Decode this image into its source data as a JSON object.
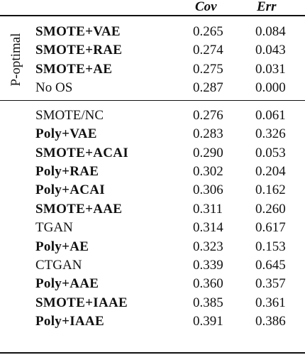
{
  "table": {
    "header": [
      "Cov",
      "Err"
    ],
    "groups": [
      {
        "label": "P-optimal",
        "rows": [
          {
            "method": "SMOTE+VAE",
            "bold": true,
            "cov": "0.265",
            "err": "0.084"
          },
          {
            "method": "SMOTE+RAE",
            "bold": true,
            "cov": "0.274",
            "err": "0.043"
          },
          {
            "method": "SMOTE+AE",
            "bold": true,
            "cov": "0.275",
            "err": "0.031"
          },
          {
            "method": "No OS",
            "bold": false,
            "cov": "0.287",
            "err": "0.000"
          }
        ]
      },
      {
        "rows": [
          {
            "method": "SMOTE/NC",
            "bold": false,
            "cov": "0.276",
            "err": "0.061"
          },
          {
            "method": "Poly+VAE",
            "bold": true,
            "cov": "0.283",
            "err": "0.326"
          },
          {
            "method": "SMOTE+ACAI",
            "bold": true,
            "cov": "0.290",
            "err": "0.053"
          },
          {
            "method": "Poly+RAE",
            "bold": true,
            "cov": "0.302",
            "err": "0.204"
          },
          {
            "method": "Poly+ACAI",
            "bold": true,
            "cov": "0.306",
            "err": "0.162"
          },
          {
            "method": "SMOTE+AAE",
            "bold": true,
            "cov": "0.311",
            "err": "0.260"
          },
          {
            "method": "TGAN",
            "bold": false,
            "cov": "0.314",
            "err": "0.617"
          },
          {
            "method": "Poly+AE",
            "bold": true,
            "cov": "0.323",
            "err": "0.153"
          },
          {
            "method": "CTGAN",
            "bold": false,
            "cov": "0.339",
            "err": "0.645"
          },
          {
            "method": "Poly+AAE",
            "bold": true,
            "cov": "0.360",
            "err": "0.357"
          },
          {
            "method": "SMOTE+IAAE",
            "bold": true,
            "cov": "0.385",
            "err": "0.361"
          },
          {
            "method": "Poly+IAAE",
            "bold": true,
            "cov": "0.391",
            "err": "0.386"
          }
        ]
      }
    ]
  }
}
